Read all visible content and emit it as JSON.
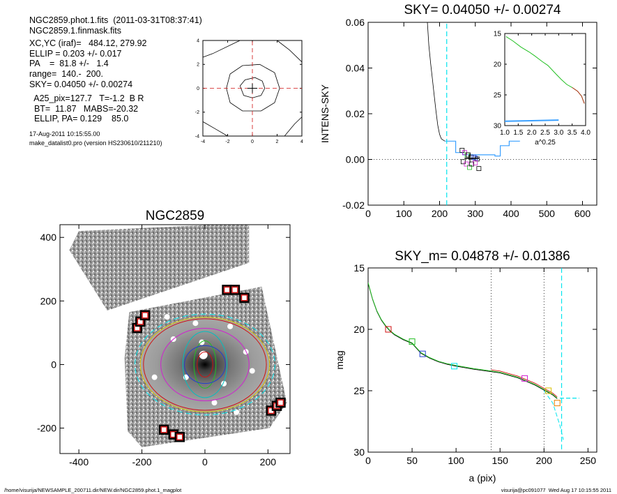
{
  "info": {
    "lines": [
      "NGC2859.phot.1.fits  (2011-03-31T08:37:41)",
      "NGC2859.1.finmask.fits",
      "XC,YC (iraf)=   484.12, 279.92",
      "ELLIP = 0.203 +/- 0.017",
      "PA    =  81.8 +/-   1.4",
      "range=  140.-  200.",
      "SKY= 0.04050 +/- 0.00274",
      "  A25_pix=127.7   T=-1.2  B R",
      "  BT=  11.87   MABS=-20.32",
      "  ELLIP, PA= 0.129    85.0"
    ],
    "date": "17-Aug-2011 10:15:55.00",
    "program": "make_datalist0.pro (version HS230610/211210)"
  },
  "footer": {
    "left": "/home/visurija/NEWSAMPLE_200711.dir/NEW.dir/NGC2859.phot.1_magplot",
    "right": "visurija@pc091077  Wed Aug 17 10:15:55 2011"
  },
  "colors": {
    "cyan": "#00e5ee",
    "red": "#d01010",
    "green": "#22c022",
    "blue": "#2040d0",
    "magenta": "#d020d0",
    "yellow": "#d8c000",
    "orange": "#e88000"
  },
  "chart_data": [
    {
      "id": "centering",
      "type": "line",
      "title": "",
      "xlim": [
        -4,
        4
      ],
      "ylim": [
        -4,
        4
      ],
      "xticks": [
        "-4",
        "-2",
        "0",
        "2",
        "4"
      ],
      "yticks": [
        "-4",
        "-2",
        "0",
        "2",
        "4"
      ],
      "contours": [
        {
          "level": "outer",
          "points": [
            [
              -4,
              2.6
            ],
            [
              -3.2,
              2.9
            ],
            [
              -1.4,
              3.8
            ],
            [
              -1.0,
              4
            ]
          ]
        },
        {
          "level": "outer-right",
          "points": [
            [
              4,
              2.2
            ],
            [
              3.0,
              3.2
            ],
            [
              2.0,
              4
            ]
          ]
        },
        {
          "level": "outer-bottom",
          "points": [
            [
              -4,
              -2.8
            ],
            [
              -3.0,
              -3.4
            ],
            [
              -2.0,
              -4
            ]
          ]
        },
        {
          "level": "outer-bottom-right",
          "points": [
            [
              2.6,
              -4
            ],
            [
              3.4,
              -3.0
            ],
            [
              4,
              -2.4
            ]
          ]
        },
        {
          "level": "mid",
          "points": [
            [
              -2.1,
              0
            ],
            [
              -1.8,
              1.2
            ],
            [
              -0.8,
              1.9
            ],
            [
              0.6,
              2.0
            ],
            [
              1.8,
              1.3
            ],
            [
              2.2,
              0
            ],
            [
              1.8,
              -1.2
            ],
            [
              0.7,
              -1.9
            ],
            [
              -0.8,
              -1.9
            ],
            [
              -1.8,
              -1.2
            ],
            [
              -2.1,
              0
            ]
          ]
        },
        {
          "level": "inner",
          "points": [
            [
              -1.0,
              0.2
            ],
            [
              -0.6,
              0.7
            ],
            [
              0.2,
              0.9
            ],
            [
              0.8,
              0.6
            ],
            [
              1.0,
              0
            ],
            [
              0.7,
              -0.6
            ],
            [
              0,
              -0.8
            ],
            [
              -0.7,
              -0.6
            ],
            [
              -1.0,
              0.2
            ]
          ]
        }
      ]
    },
    {
      "id": "sky",
      "type": "line",
      "title": "SKY= 0.04050 +/- 0.00274",
      "xlabel": "",
      "ylabel": "INTENS-SKY",
      "xlim": [
        0,
        640
      ],
      "ylim": [
        -0.02,
        0.06
      ],
      "xticks": [
        "0",
        "100",
        "200",
        "300",
        "400",
        "500",
        "600"
      ],
      "yticks": [
        "-0.02",
        "0.00",
        "0.02",
        "0.04",
        "0.06"
      ],
      "profile": [
        [
          165,
          0.062
        ],
        [
          170,
          0.05
        ],
        [
          175,
          0.042
        ],
        [
          180,
          0.035
        ],
        [
          185,
          0.028
        ],
        [
          190,
          0.021
        ],
        [
          195,
          0.015
        ],
        [
          200,
          0.011
        ],
        [
          205,
          0.009
        ],
        [
          210,
          0.0085
        ],
        [
          215,
          0.008
        ]
      ],
      "steps": [
        [
          215,
          0.008
        ],
        [
          245,
          0.008
        ],
        [
          245,
          0.003
        ],
        [
          265,
          0.003
        ],
        [
          265,
          0.002
        ],
        [
          355,
          0.002
        ],
        [
          355,
          0.0015
        ],
        [
          370,
          0.0015
        ],
        [
          370,
          0.006
        ],
        [
          395,
          0.006
        ],
        [
          395,
          0.008
        ],
        [
          425,
          0.008
        ]
      ],
      "boxes": [
        [
          263,
          0.004
        ],
        [
          270,
          0.003
        ],
        [
          277,
          0.002
        ],
        [
          288,
          0.001
        ],
        [
          300,
          0.0005
        ],
        [
          305,
          0.0002
        ],
        [
          266,
          -0.001
        ],
        [
          275,
          -0.002
        ],
        [
          284,
          -0.0035
        ],
        [
          290,
          -0.002
        ],
        [
          296,
          0.001
        ],
        [
          310,
          -0.004
        ],
        [
          280,
          0.002
        ],
        [
          300,
          -0.0015
        ]
      ],
      "sky_line_x": 220,
      "inset": {
        "xlabel": "a^0.25",
        "xlim": [
          1.0,
          4.0
        ],
        "ylim": [
          30,
          15
        ],
        "xticks": [
          "1.0",
          "1.5",
          "2.0",
          "2.5",
          "3.0",
          "3.5",
          "4.0"
        ],
        "yticks": [
          "15",
          "20",
          "25",
          "30"
        ],
        "profile": [
          [
            1.05,
            15.5
          ],
          [
            1.3,
            16.2
          ],
          [
            1.6,
            17.2
          ],
          [
            1.9,
            18.0
          ],
          [
            2.1,
            18.6
          ],
          [
            2.4,
            19.6
          ],
          [
            2.6,
            20.2
          ],
          [
            2.9,
            21.6
          ],
          [
            3.1,
            22.5
          ],
          [
            3.3,
            23.3
          ],
          [
            3.5,
            23.8
          ],
          [
            3.7,
            24.4
          ],
          [
            3.85,
            25.2
          ],
          [
            3.95,
            26.4
          ]
        ],
        "sky_band": [
          [
            1.0,
            29.3
          ],
          [
            3.0,
            29.1
          ]
        ]
      }
    },
    {
      "id": "image",
      "type": "heatmap",
      "title": "NGC2859",
      "xlim": [
        -460,
        270
      ],
      "ylim": [
        -280,
        440
      ],
      "xticks": [
        "-400",
        "-200",
        "0",
        "200"
      ],
      "yticks": [
        "-200",
        "0",
        "200",
        "400"
      ],
      "ellipses": [
        {
          "color": "#d01010",
          "a": 25,
          "b": 40
        },
        {
          "color": "#22c022",
          "a": 35,
          "b": 75
        },
        {
          "color": "#2040d0",
          "a": 65,
          "b": 60
        },
        {
          "color": "#00c0c0",
          "a": 70,
          "b": 105
        },
        {
          "color": "#d020d0",
          "a": 140,
          "b": 115
        },
        {
          "color": "#d8c000",
          "a": 205,
          "b": 150
        },
        {
          "color": "#d01010",
          "a": 195,
          "b": 145
        },
        {
          "color": "#808080",
          "a": 210,
          "b": 155
        },
        {
          "color": "#00e5ee",
          "a": 222,
          "b": 160
        }
      ],
      "mask_boxes": [
        [
          -215,
          115
        ],
        [
          -205,
          135
        ],
        [
          -190,
          155
        ],
        [
          70,
          235
        ],
        [
          95,
          235
        ],
        [
          125,
          210
        ],
        [
          210,
          -145
        ],
        [
          228,
          -130
        ],
        [
          240,
          -120
        ],
        [
          -130,
          -205
        ],
        [
          -100,
          -220
        ],
        [
          -80,
          -228
        ]
      ]
    },
    {
      "id": "mag",
      "type": "line",
      "title": "SKY_m=  0.04878 +/- 0.01386",
      "xlabel": "a (pix)",
      "ylabel": "mag",
      "xlim": [
        0,
        260
      ],
      "ylim": [
        30,
        15
      ],
      "xticks": [
        "0",
        "50",
        "100",
        "150",
        "200",
        "250"
      ],
      "yticks": [
        "15",
        "20",
        "25",
        "30"
      ],
      "profile": [
        [
          0,
          16.2
        ],
        [
          5,
          17.5
        ],
        [
          10,
          18.5
        ],
        [
          15,
          19.2
        ],
        [
          20,
          19.7
        ],
        [
          25,
          20.1
        ],
        [
          30,
          20.4
        ],
        [
          40,
          20.8
        ],
        [
          50,
          21.1
        ],
        [
          60,
          21.9
        ],
        [
          70,
          22.3
        ],
        [
          80,
          22.6
        ],
        [
          90,
          22.8
        ],
        [
          100,
          22.95
        ],
        [
          120,
          23.2
        ],
        [
          140,
          23.4
        ],
        [
          150,
          23.5
        ],
        [
          160,
          23.7
        ],
        [
          170,
          23.9
        ],
        [
          180,
          24.2
        ],
        [
          190,
          24.5
        ],
        [
          200,
          24.9
        ],
        [
          210,
          25.3
        ],
        [
          215,
          25.6
        ]
      ],
      "sky_tail": [
        [
          218,
          25.6
        ],
        [
          240,
          25.6
        ]
      ],
      "sky_drop": [
        [
          200,
          25.0
        ],
        [
          210,
          26.0
        ],
        [
          218,
          27.8
        ],
        [
          222,
          29.0
        ]
      ],
      "boxes": [
        {
          "x": 23,
          "y": 20.0,
          "color": "#d01010"
        },
        {
          "x": 50,
          "y": 21.0,
          "color": "#22c022"
        },
        {
          "x": 62,
          "y": 22.0,
          "color": "#2040d0"
        },
        {
          "x": 98,
          "y": 23.0,
          "color": "#00e5ee"
        },
        {
          "x": 178,
          "y": 24.0,
          "color": "#d020d0"
        },
        {
          "x": 205,
          "y": 25.0,
          "color": "#d8c000"
        },
        {
          "x": 215,
          "y": 26.0,
          "color": "#e88000"
        }
      ],
      "range_lines": [
        140,
        200
      ],
      "sky_line_x": 220
    }
  ]
}
